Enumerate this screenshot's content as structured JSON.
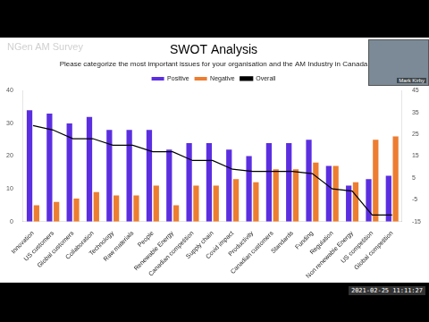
{
  "chart_data": {
    "type": "bar",
    "title": "SWOT Analysis",
    "subtitle": "Please categorize the most important issues for your organisation and the AM Industry in Canada",
    "annotations": [
      "NGen AM Survey",
      "Mark Kirby",
      "2021-02-25 11:11:27"
    ],
    "categories": [
      "Innovation",
      "US customers",
      "Global customers",
      "Collaboration",
      "Technology",
      "Raw materials",
      "People",
      "Renewable Energy",
      "Canadian competition",
      "Supply chain",
      "Covid impact",
      "Productivity",
      "Canadian customers",
      "Standards",
      "Funding",
      "Regulation",
      "Non renewable Energy",
      "US competition",
      "Global competition"
    ],
    "series": [
      {
        "name": "Positive",
        "color": "#5b2fe0",
        "type": "bar",
        "values": [
          34,
          33,
          30,
          32,
          28,
          28,
          28,
          22,
          24,
          24,
          22,
          20,
          24,
          24,
          25,
          17,
          11,
          13,
          14
        ]
      },
      {
        "name": "Negative",
        "color": "#ed7d31",
        "type": "bar",
        "values": [
          5,
          6,
          7,
          9,
          8,
          8,
          11,
          5,
          11,
          11,
          13,
          12,
          16,
          16,
          18,
          17,
          12,
          25,
          26
        ]
      },
      {
        "name": "Overall",
        "color": "#000000",
        "type": "line",
        "axis": "y2",
        "values": [
          29,
          27,
          23,
          23,
          20,
          20,
          17,
          17,
          13,
          13,
          9,
          8,
          8,
          8,
          7,
          0,
          -1,
          -12,
          -12
        ]
      }
    ],
    "ylim": [
      0,
      40
    ],
    "yticks": [
      0,
      10,
      20,
      30,
      40
    ],
    "y2lim": [
      -15,
      45
    ],
    "y2ticks": [
      -15,
      -5,
      5,
      15,
      25,
      35,
      45
    ],
    "grid": false,
    "legend": "top"
  }
}
